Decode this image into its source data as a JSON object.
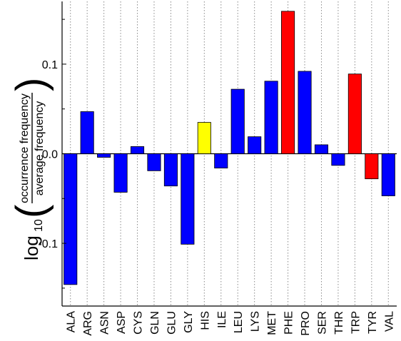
{
  "chart_data": {
    "type": "bar",
    "categories": [
      "ALA",
      "ARG",
      "ASN",
      "ASP",
      "CYS",
      "GLN",
      "GLU",
      "GLY",
      "HIS",
      "ILE",
      "LEU",
      "LYS",
      "MET",
      "PHE",
      "PRO",
      "SER",
      "THR",
      "TRP",
      "TYR",
      "VAL"
    ],
    "values": [
      -0.146,
      0.047,
      -0.004,
      -0.043,
      0.008,
      -0.019,
      -0.036,
      -0.101,
      0.035,
      -0.016,
      0.072,
      0.019,
      0.081,
      0.159,
      0.092,
      0.01,
      -0.013,
      0.089,
      -0.028,
      -0.047
    ],
    "bar_colors": [
      "#0000ff",
      "#0000ff",
      "#0000ff",
      "#0000ff",
      "#0000ff",
      "#0000ff",
      "#0000ff",
      "#0000ff",
      "#ffff00",
      "#0000ff",
      "#0000ff",
      "#0000ff",
      "#0000ff",
      "#ff0000",
      "#0000ff",
      "#0000ff",
      "#0000ff",
      "#ff0000",
      "#ff0000",
      "#0000ff"
    ],
    "ylim": [
      -0.17,
      0.17
    ],
    "yticks": [
      -0.1,
      0.0,
      0.1
    ],
    "ytick_labels": [
      "-0.1",
      "0.0",
      "0.1"
    ],
    "ylabel": {
      "prefix": "log",
      "subscript": "10",
      "numerator": "occurrence frequency",
      "denominator": "average frequency"
    },
    "grid": "vertical dotted",
    "legend": "none"
  }
}
